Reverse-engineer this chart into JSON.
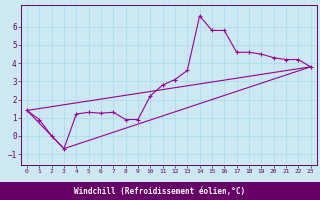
{
  "xlabel": "Windchill (Refroidissement éolien,°C)",
  "bg_color": "#cce8f0",
  "grid_color": "#aaddee",
  "line_color": "#990099",
  "spine_color": "#660066",
  "bottom_bar_color": "#660066",
  "xlim": [
    -0.5,
    23.5
  ],
  "ylim": [
    -1.6,
    7.2
  ],
  "xticks": [
    0,
    1,
    2,
    3,
    4,
    5,
    6,
    7,
    8,
    9,
    10,
    11,
    12,
    13,
    14,
    15,
    16,
    17,
    18,
    19,
    20,
    21,
    22,
    23
  ],
  "yticks": [
    -1,
    0,
    1,
    2,
    3,
    4,
    5,
    6
  ],
  "series": [
    [
      0,
      1.4
    ],
    [
      1,
      0.9
    ],
    [
      2,
      0.0
    ],
    [
      3,
      -0.7
    ],
    [
      4,
      1.2
    ],
    [
      5,
      1.3
    ],
    [
      6,
      1.25
    ],
    [
      7,
      1.3
    ],
    [
      8,
      0.9
    ],
    [
      9,
      0.9
    ],
    [
      10,
      2.2
    ],
    [
      11,
      2.8
    ],
    [
      12,
      3.1
    ],
    [
      13,
      3.6
    ],
    [
      14,
      6.6
    ],
    [
      15,
      5.8
    ],
    [
      16,
      5.8
    ],
    [
      17,
      4.6
    ],
    [
      18,
      4.6
    ],
    [
      19,
      4.5
    ],
    [
      20,
      4.3
    ],
    [
      21,
      4.2
    ],
    [
      22,
      4.2
    ],
    [
      23,
      3.8
    ]
  ],
  "line2": [
    [
      0,
      1.4
    ],
    [
      3,
      -0.7
    ],
    [
      23,
      3.8
    ]
  ],
  "line3": [
    [
      0,
      1.4
    ],
    [
      23,
      3.8
    ]
  ],
  "xlabel_fontsize": 5.5,
  "xtick_fontsize": 4.5,
  "ytick_fontsize": 5.5
}
